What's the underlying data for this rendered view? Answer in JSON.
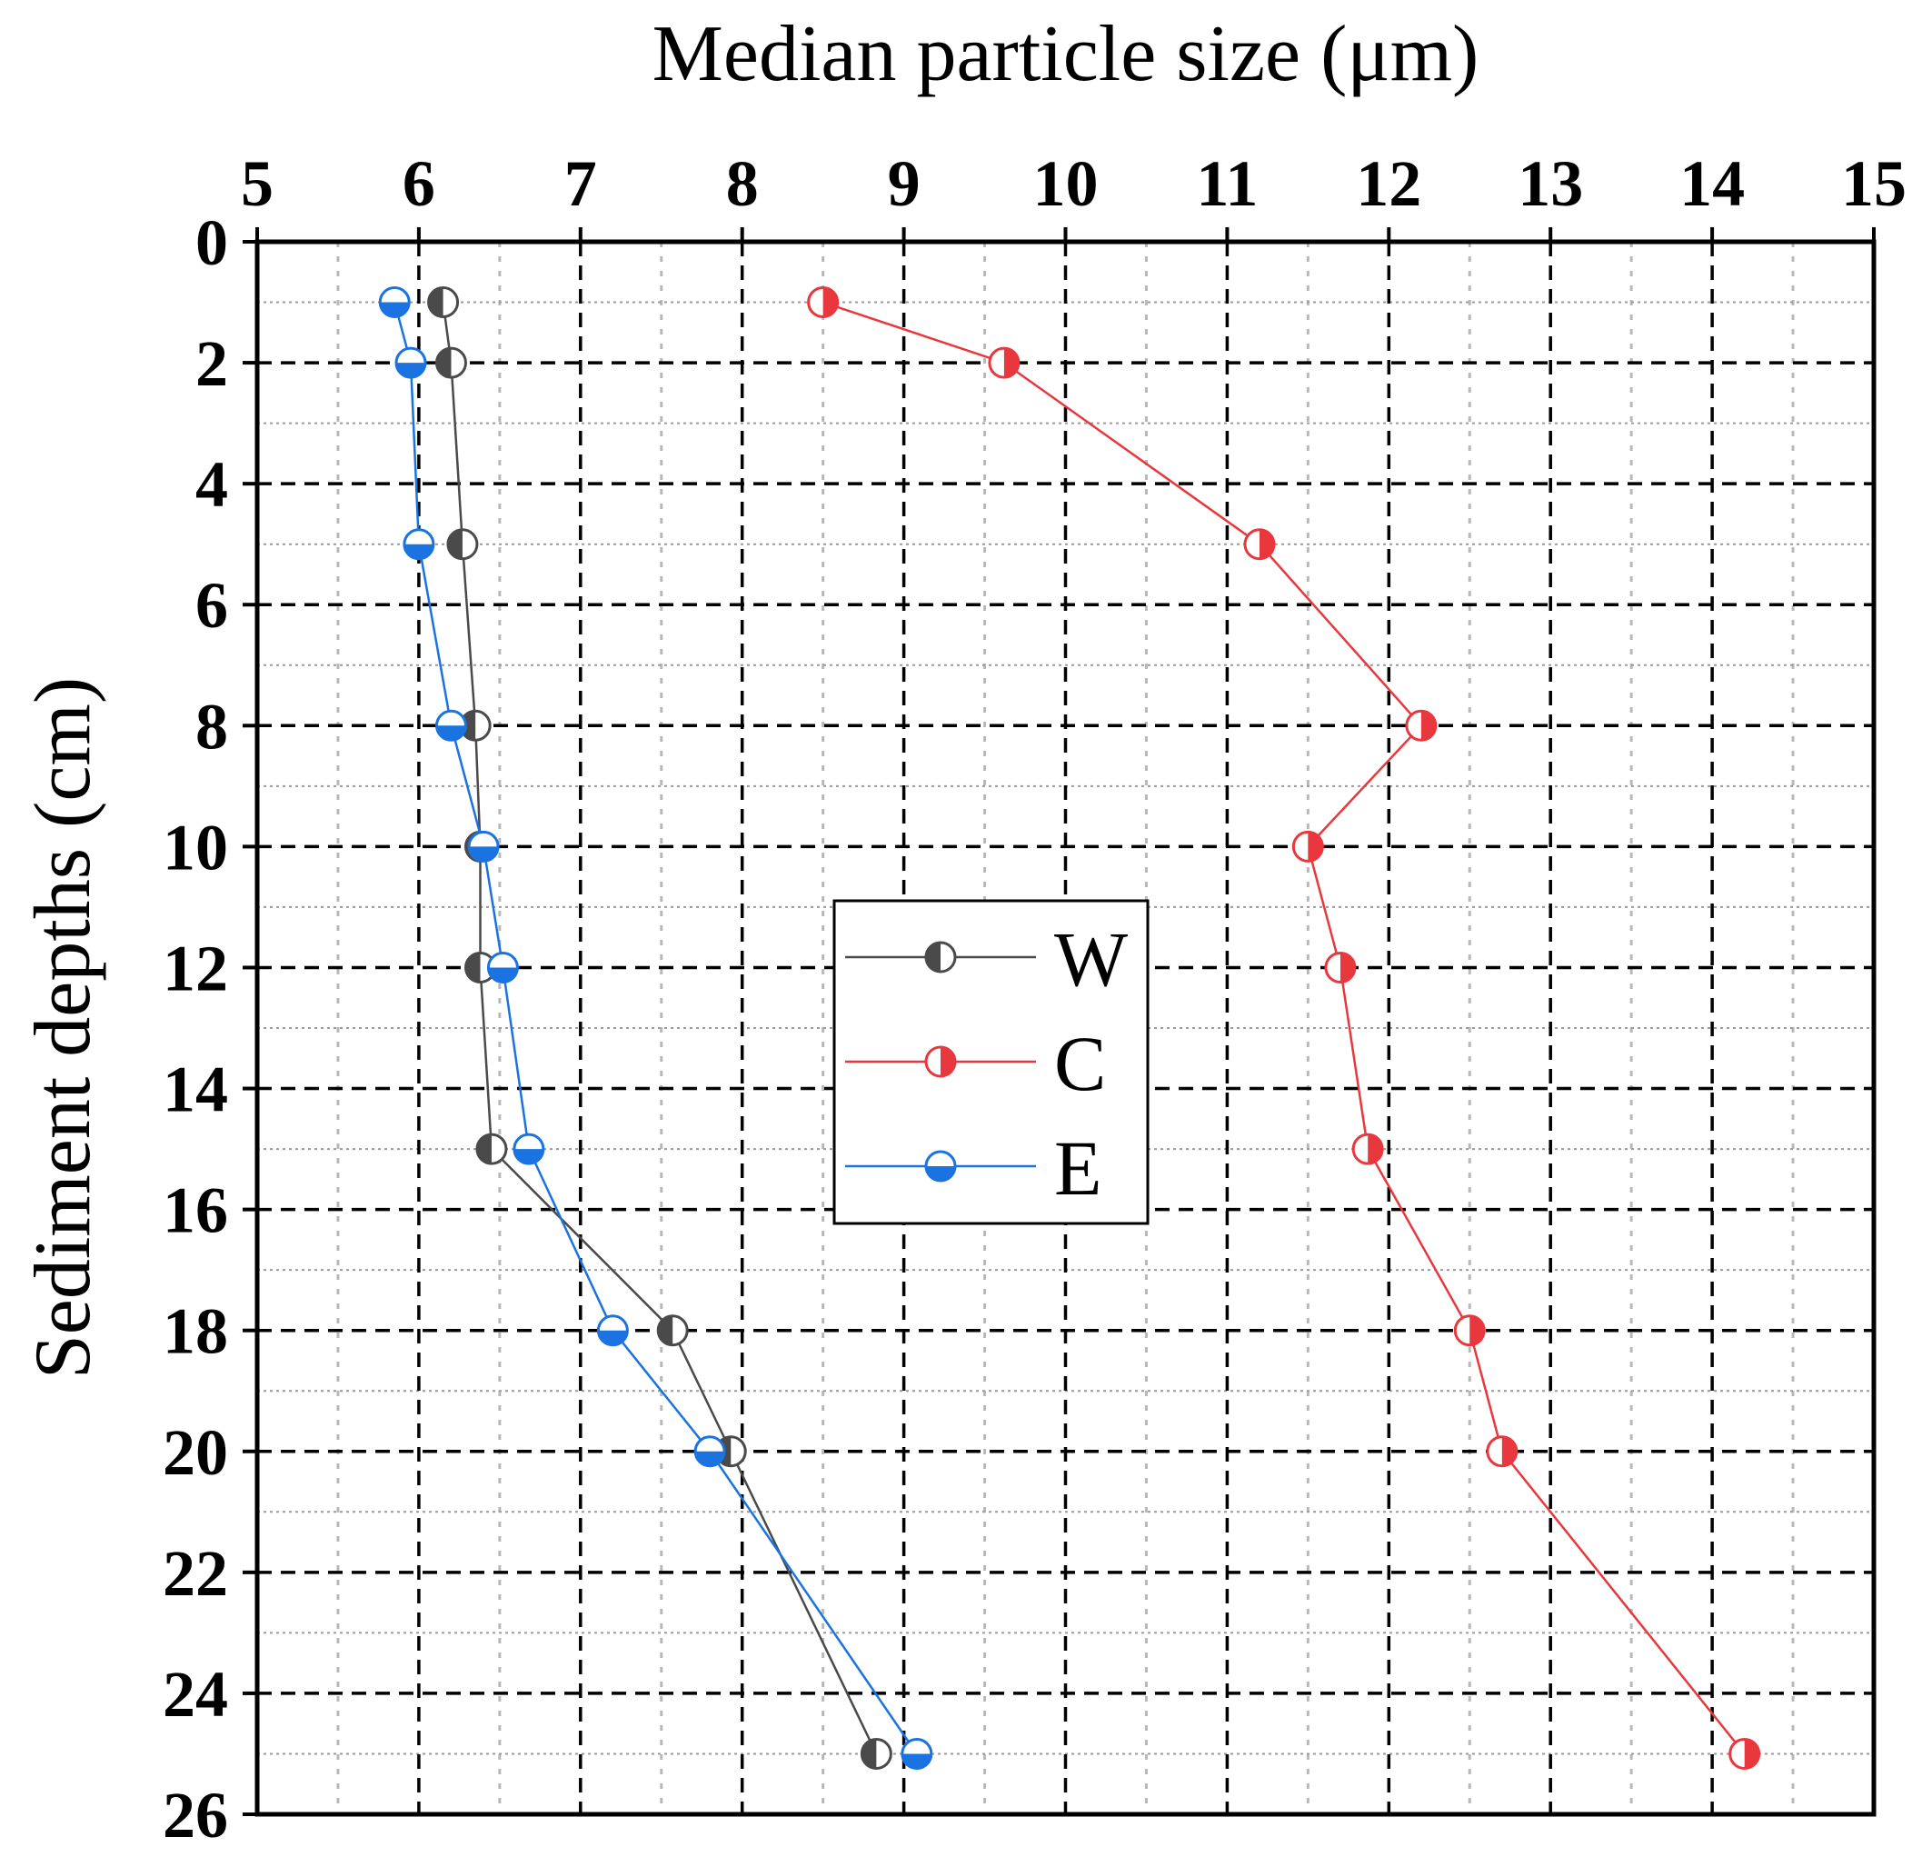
{
  "chart_data": {
    "type": "line",
    "title": "",
    "xlabel": "Median particle size (μm)",
    "ylabel": "Sediment depths (cm)",
    "xlim": [
      5,
      15
    ],
    "ylim": [
      0,
      26
    ],
    "y_inverted": true,
    "x_axis_position": "top",
    "x_ticks": [
      "5",
      "6",
      "7",
      "8",
      "9",
      "10",
      "11",
      "12",
      "13",
      "14",
      "15"
    ],
    "y_ticks": [
      "0",
      "2",
      "4",
      "6",
      "8",
      "10",
      "12",
      "14",
      "16",
      "18",
      "20",
      "22",
      "24",
      "26"
    ],
    "grid": true,
    "legend_position": "center",
    "series": [
      {
        "name": "W",
        "color": "#4a4a4a",
        "marker": "half-filled-left",
        "depths": [
          1,
          2,
          5,
          8,
          10,
          12,
          15,
          18,
          20,
          25
        ],
        "values": [
          6.15,
          6.2,
          6.27,
          6.35,
          6.38,
          6.38,
          6.45,
          7.57,
          7.93,
          8.83
        ]
      },
      {
        "name": "C",
        "color": "#e8383d",
        "marker": "half-filled-right",
        "depths": [
          1,
          2,
          5,
          8,
          10,
          12,
          15,
          18,
          20,
          25
        ],
        "values": [
          8.5,
          9.62,
          11.2,
          12.2,
          11.5,
          11.7,
          11.87,
          12.5,
          12.7,
          14.2
        ]
      },
      {
        "name": "E",
        "color": "#1a73e0",
        "marker": "half-filled-bottom",
        "depths": [
          1,
          2,
          5,
          8,
          10,
          12,
          15,
          18,
          20,
          25
        ],
        "values": [
          5.85,
          5.95,
          6.0,
          6.2,
          6.4,
          6.52,
          6.68,
          7.2,
          7.8,
          9.08
        ]
      }
    ]
  }
}
